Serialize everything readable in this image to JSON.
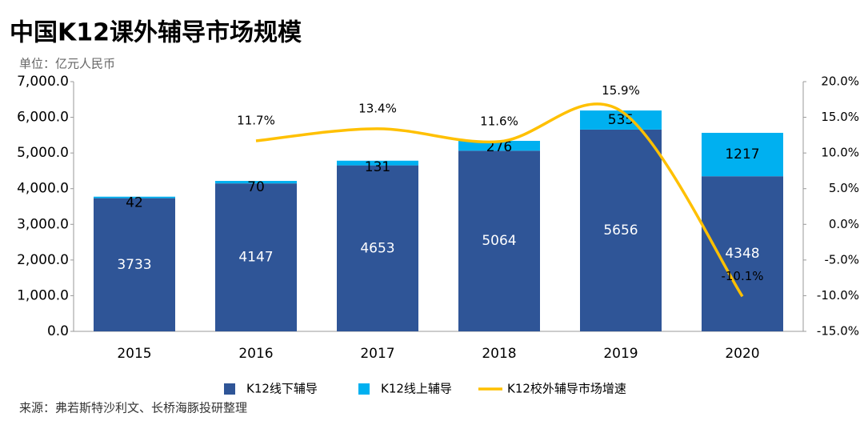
{
  "chart_data": {
    "type": "bar",
    "title": "中国K12课外辅导市场规模",
    "subtitle": "单位：亿元人民币",
    "source": "来源：弗若斯特沙利文、长桥海豚投研整理",
    "categories": [
      "2015",
      "2016",
      "2017",
      "2018",
      "2019",
      "2020"
    ],
    "stacked": true,
    "series": [
      {
        "name": "K12线下辅导",
        "color": "#2f5597",
        "values": [
          3733,
          4147,
          4653,
          5064,
          5656,
          4348
        ]
      },
      {
        "name": "K12线上辅导",
        "color": "#00b0f0",
        "values": [
          42,
          70,
          131,
          276,
          535,
          1217
        ]
      },
      {
        "name": "K12校外辅导市场增速",
        "color": "#ffc000",
        "type": "line",
        "axis": "y2",
        "values": [
          null,
          11.7,
          13.4,
          11.6,
          15.9,
          -10.1
        ],
        "value_labels": [
          null,
          "11.7%",
          "13.4%",
          "11.6%",
          "15.9%",
          "-10.1%"
        ]
      }
    ],
    "ylim": [
      0,
      7000
    ],
    "yticks": [
      {
        "value": 0,
        "label": "0.0"
      },
      {
        "value": 1000,
        "label": "1,000.0"
      },
      {
        "value": 2000,
        "label": "2,000.0"
      },
      {
        "value": 3000,
        "label": "3,000.0"
      },
      {
        "value": 4000,
        "label": "4,000.0"
      },
      {
        "value": 5000,
        "label": "5,000.0"
      },
      {
        "value": 6000,
        "label": "6,000.0"
      },
      {
        "value": 7000,
        "label": "7,000.0"
      }
    ],
    "y2lim": [
      -15,
      20
    ],
    "y2ticks": [
      {
        "value": -15,
        "label": "-15.0%"
      },
      {
        "value": -10,
        "label": "-10.0%"
      },
      {
        "value": -5,
        "label": "-5.0%"
      },
      {
        "value": 0,
        "label": "0.0%"
      },
      {
        "value": 5,
        "label": "5.0%"
      },
      {
        "value": 10,
        "label": "10.0%"
      },
      {
        "value": 15,
        "label": "15.0%"
      },
      {
        "value": 20,
        "label": "20.0%"
      }
    ],
    "grid": false,
    "legend": "bottom"
  }
}
